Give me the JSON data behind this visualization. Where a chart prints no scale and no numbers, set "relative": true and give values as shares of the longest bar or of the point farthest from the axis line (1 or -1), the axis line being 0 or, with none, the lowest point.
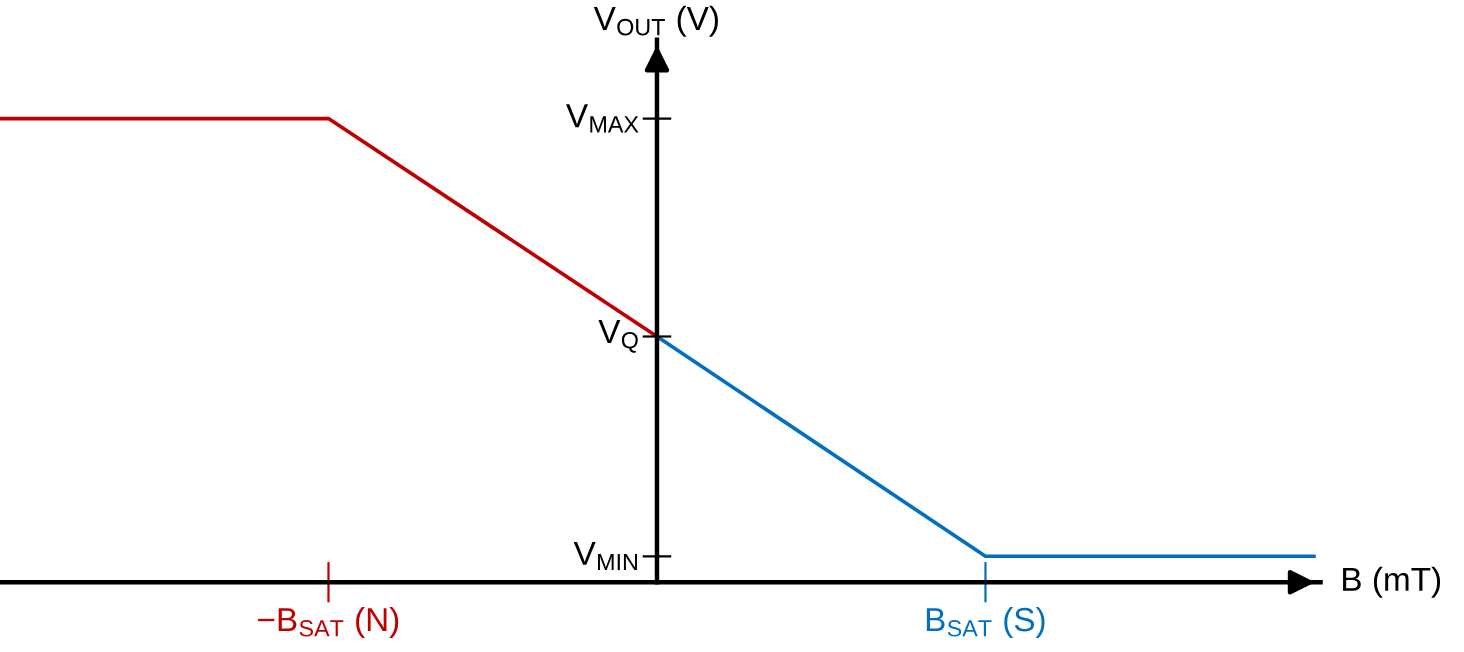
{
  "chart_data": {
    "type": "line",
    "xlabel": "B (mT)",
    "ylabel": "V$_{OUT}$ (V)",
    "relative": true,
    "categories": [
      null,
      "−B$_{SAT}$ (N)",
      null,
      "B$_{SAT}$ (S)",
      null
    ],
    "annotations": [
      "V$_{MIN}$",
      "V$_{Q}$",
      "V$_{MAX}$"
    ],
    "series": [
      {
        "color": "#c00000",
        "values": [
          1,
          1,
          0.53,
          null,
          null
        ]
      },
      {
        "color": "#0070c0",
        "values": [
          null,
          null,
          0.53,
          0.056,
          0.056
        ]
      }
    ],
    "marker": "none",
    "line_style": "solid"
  }
}
